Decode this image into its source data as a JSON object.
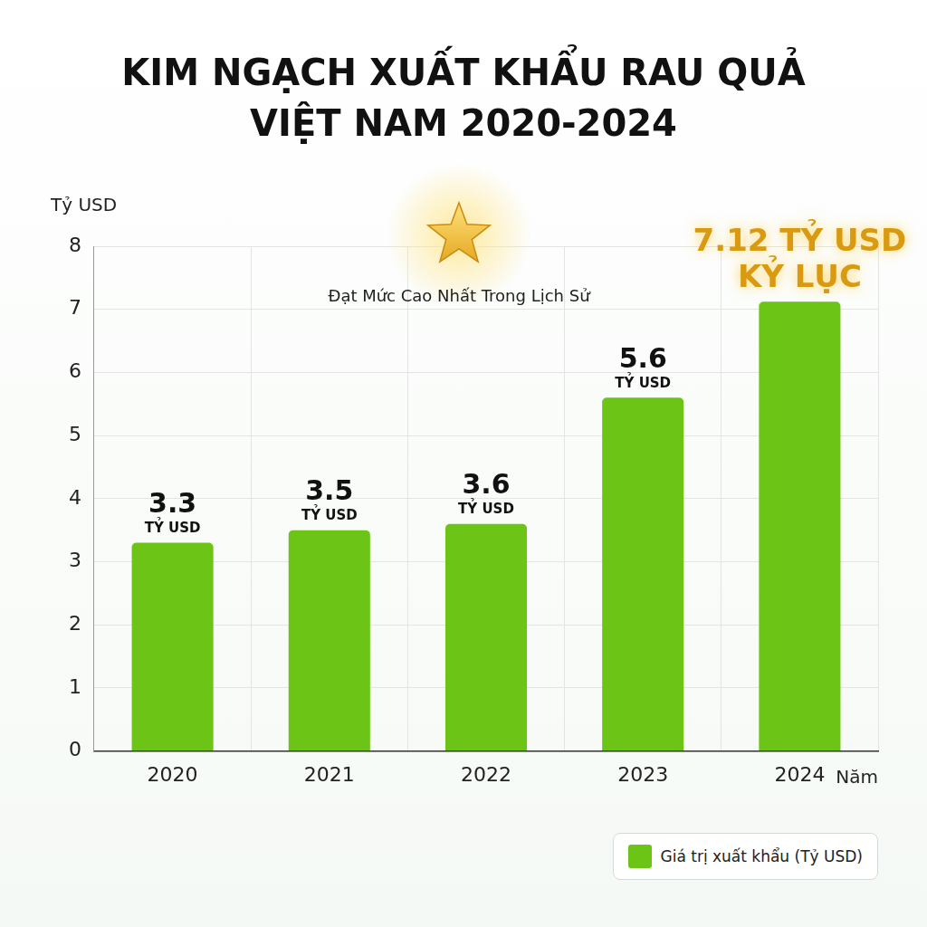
{
  "chart_data": {
    "type": "bar",
    "title": "KIM NGẠCH XUẤT KHẨU RAU QUẢ VIỆT NAM 2020-2024",
    "x_label": "Năm",
    "y_label": "Tỷ USD",
    "categories": [
      "2020",
      "2021",
      "2022",
      "2023",
      "2024"
    ],
    "series": [
      {
        "name": "Giá trị xuất khẩu (Tỷ USD)",
        "color": "#6cc417",
        "values": [
          3.3,
          3.5,
          3.6,
          5.6,
          7.12
        ],
        "value_labels": [
          [
            "3.3",
            "TỶ USD"
          ],
          [
            "3.5",
            "TỶ USD"
          ],
          [
            "3.6",
            "TỶ USD"
          ],
          [
            "5.6",
            "TỶ USD"
          ],
          [
            "7.12 TỶ USD",
            "KỶ LỤC"
          ]
        ]
      }
    ],
    "annotations": [
      "Đạt Mức Cao Nhất Trong Lịch Sử"
    ],
    "ylim": [
      0,
      8
    ],
    "yticks": [
      0,
      1,
      2,
      3,
      4,
      5,
      6,
      7,
      8
    ],
    "grid": true,
    "legend": "lower right",
    "data_labels": true
  }
}
